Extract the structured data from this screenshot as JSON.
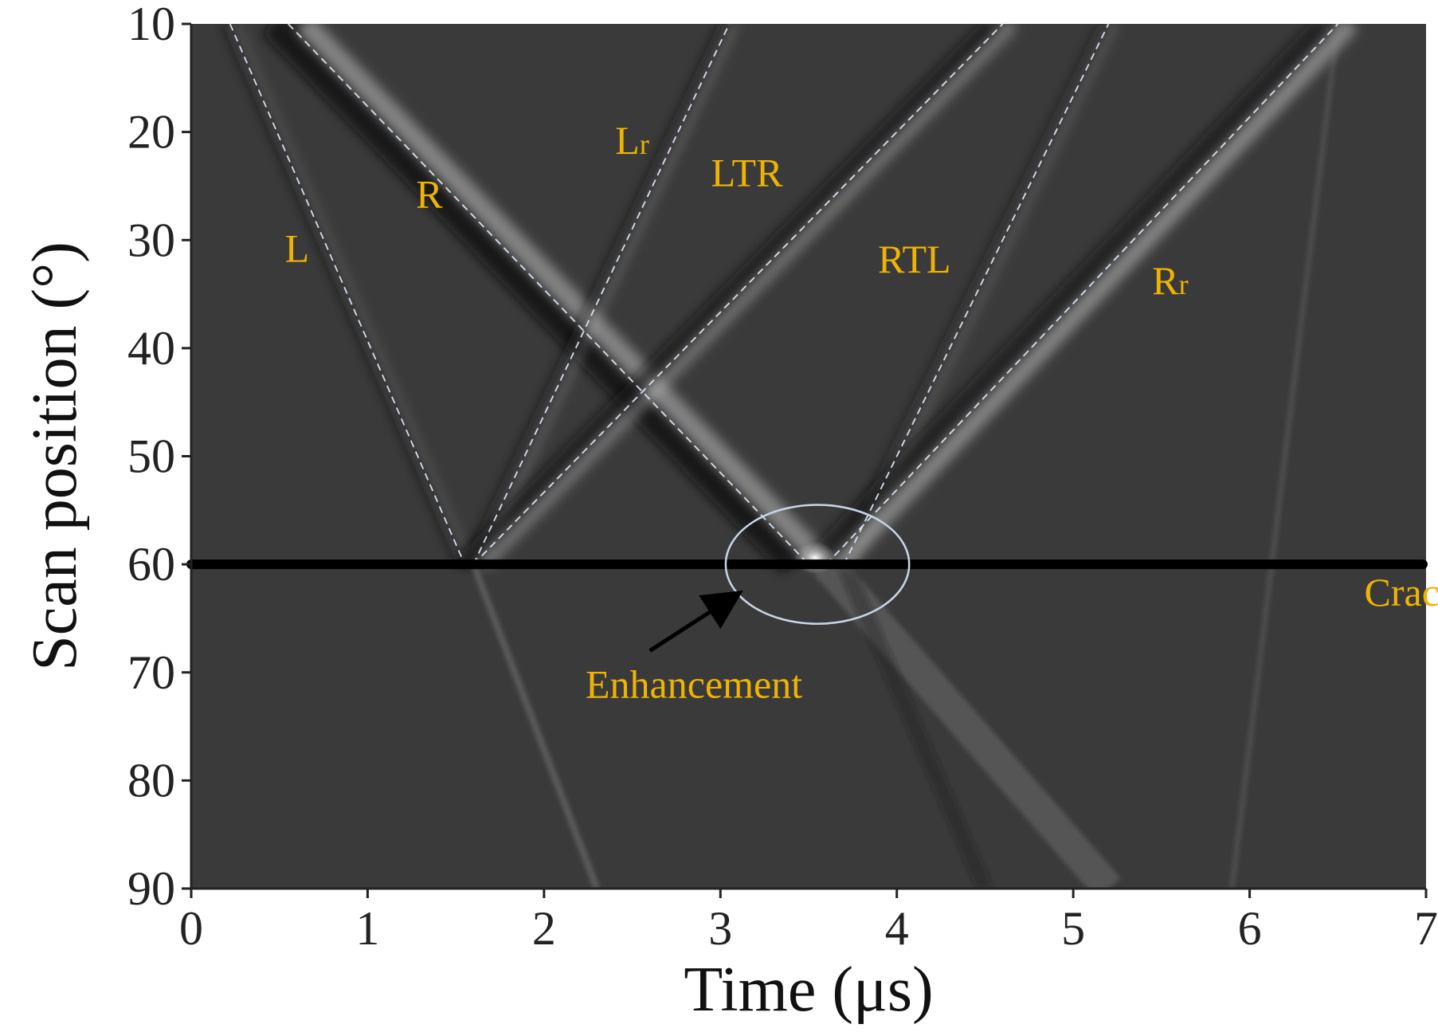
{
  "chart_data": {
    "type": "heatmap",
    "title": "",
    "xlabel": "Time (μs)",
    "ylabel": "Scan position (°)",
    "xlim": [
      0,
      7
    ],
    "ylim": [
      10,
      90
    ],
    "y_inverted": true,
    "x_ticks": [
      "0",
      "1",
      "2",
      "3",
      "4",
      "5",
      "6",
      "7"
    ],
    "y_ticks": [
      "10",
      "20",
      "30",
      "40",
      "50",
      "60",
      "70",
      "80",
      "90"
    ],
    "colormap": "grayscale",
    "background_color": "#3a3a3a",
    "crack_position": 60,
    "wave_modes": [
      {
        "label": "L",
        "label_at": [
          0.6,
          32
        ],
        "path": [
          [
            0.22,
            10
          ],
          [
            1.55,
            60
          ]
        ],
        "text_color": "#f0b400"
      },
      {
        "label": "R",
        "label_at": [
          1.35,
          27
        ],
        "path": [
          [
            0.55,
            10
          ],
          [
            3.5,
            60
          ]
        ],
        "text_color": "#f0b400"
      },
      {
        "label": "Lr",
        "label_at": [
          2.5,
          22
        ],
        "path": [
          [
            1.6,
            60
          ],
          [
            3.05,
            10
          ]
        ],
        "text_color": "#f0b400"
      },
      {
        "label": "LTR",
        "label_at": [
          3.15,
          25
        ],
        "path": [
          [
            1.6,
            60
          ],
          [
            4.6,
            10
          ]
        ],
        "text_color": "#f0b400"
      },
      {
        "label": "RTL",
        "label_at": [
          4.1,
          33
        ],
        "path": [
          [
            3.7,
            60
          ],
          [
            5.2,
            10
          ]
        ],
        "text_color": "#f0b400"
      },
      {
        "label": "Rr",
        "label_at": [
          5.55,
          35
        ],
        "path": [
          [
            3.6,
            60
          ],
          [
            6.5,
            10
          ]
        ],
        "text_color": "#f0b400"
      }
    ],
    "annotations": [
      {
        "text": "Crack",
        "at": [
          6.65,
          62.5
        ],
        "color": "#f0b400"
      },
      {
        "text": "Enhancement",
        "at": [
          2.85,
          71
        ],
        "color": "#f0b400"
      }
    ],
    "enhancement_ellipse": {
      "center": [
        3.55,
        60
      ],
      "radius_time": 0.52,
      "radius_scan": 5.5
    }
  }
}
